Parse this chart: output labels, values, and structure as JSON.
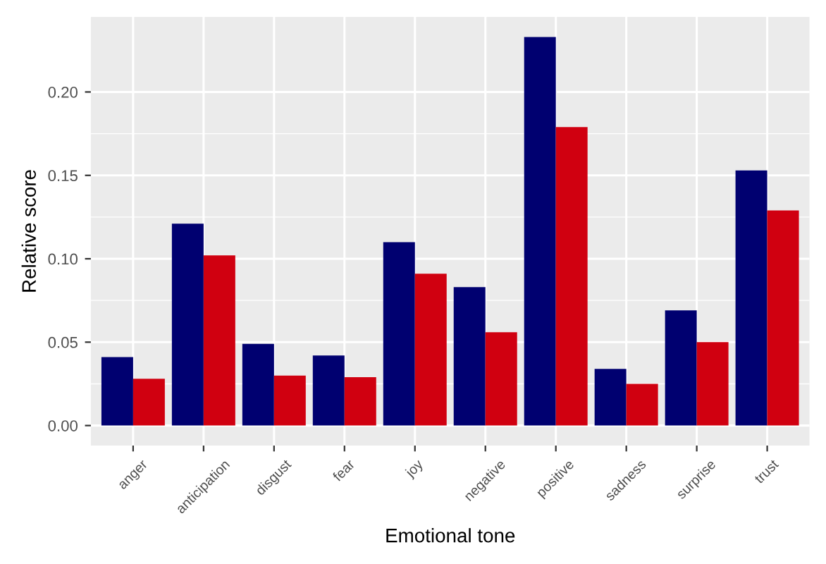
{
  "chart_data": {
    "type": "bar",
    "xlabel": "Emotional tone",
    "ylabel": "Relative score",
    "categories": [
      "anger",
      "anticipation",
      "disgust",
      "fear",
      "joy",
      "negative",
      "positive",
      "sadness",
      "surprise",
      "trust"
    ],
    "series": [
      {
        "color": "#000070",
        "values": [
          0.041,
          0.121,
          0.049,
          0.042,
          0.11,
          0.083,
          0.233,
          0.034,
          0.069,
          0.153
        ]
      },
      {
        "color": "#d00010",
        "values": [
          0.028,
          0.102,
          0.03,
          0.029,
          0.091,
          0.056,
          0.179,
          0.025,
          0.05,
          0.129
        ]
      }
    ],
    "ylim": [
      -0.012,
      0.245
    ],
    "yticks": [
      {
        "value": 0,
        "label": "0.00"
      },
      0.05,
      {
        "value": 0.1,
        "label": "0.10"
      },
      0.15,
      {
        "value": 0.2,
        "label": "0.20"
      }
    ],
    "grid": true,
    "legend": false
  }
}
